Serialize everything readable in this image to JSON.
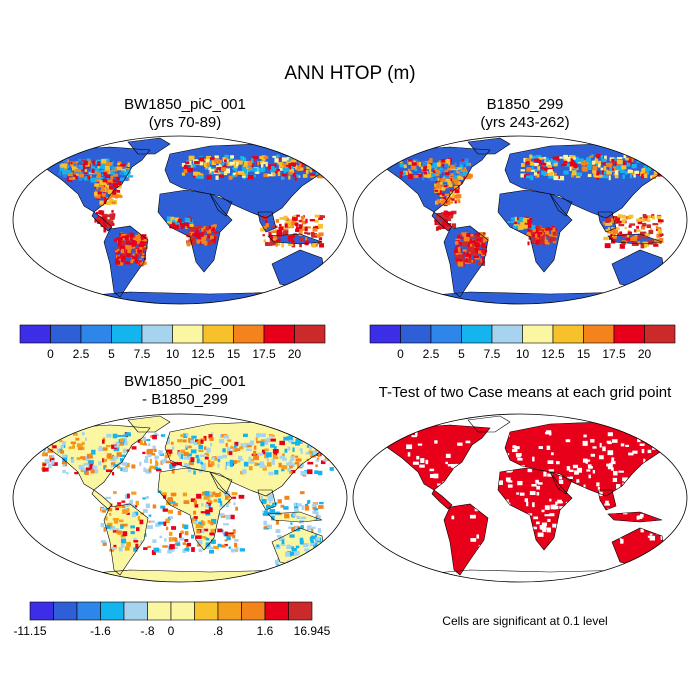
{
  "figure": {
    "title": "ANN HTOP (m)",
    "panels": [
      {
        "title_line1": "BW1850_piC_001",
        "title_line2": "(yrs 70-89)"
      },
      {
        "title_line1": "B1850_299",
        "title_line2": "(yrs 243-262)"
      },
      {
        "title_line1": "BW1850_piC_001",
        "title_line2": "- B1850_299"
      },
      {
        "title_line1": "T-Test of two Case means at each grid point"
      }
    ],
    "significance_note": "Cells are significant at 0.1 level"
  },
  "chart_data": [
    {
      "type": "heatmap",
      "title": "BW1850_piC_001 (yrs 70-89)",
      "variable": "HTOP",
      "units": "m",
      "colorbar": {
        "labels": [
          "0",
          "2.5",
          "5",
          "7.5",
          "10",
          "12.5",
          "15",
          "17.5",
          "20"
        ],
        "colors": [
          "#3b2ee6",
          "#2e5fd6",
          "#2f86ea",
          "#14b4ef",
          "#a6d3ee",
          "#fbf6a1",
          "#f6c12b",
          "#f5831c",
          "#e8001a",
          "#cc2a2a"
        ]
      }
    },
    {
      "type": "heatmap",
      "title": "B1850_299 (yrs 243-262)",
      "variable": "HTOP",
      "units": "m",
      "colorbar": {
        "labels": [
          "0",
          "2.5",
          "5",
          "7.5",
          "10",
          "12.5",
          "15",
          "17.5",
          "20"
        ],
        "colors": [
          "#3b2ee6",
          "#2e5fd6",
          "#2f86ea",
          "#14b4ef",
          "#a6d3ee",
          "#fbf6a1",
          "#f6c12b",
          "#f5831c",
          "#e8001a",
          "#cc2a2a"
        ]
      }
    },
    {
      "type": "heatmap",
      "title": "BW1850_piC_001 - B1850_299",
      "variable": "HTOP difference",
      "units": "m",
      "colorbar": {
        "labels": [
          "-11.15",
          "-1.6",
          "-.8",
          "0",
          ".8",
          "1.6",
          "16.945"
        ],
        "colors": [
          "#3b2ee6",
          "#2e5fd6",
          "#2f86ea",
          "#14b4ef",
          "#a6d3ee",
          "#fbf6a1",
          "#fbf6a1",
          "#f6c12b",
          "#f5a01c",
          "#f5831c",
          "#e8001a",
          "#cc2a2a"
        ]
      }
    },
    {
      "type": "heatmap",
      "title": "T-Test of two Case means at each grid point",
      "significance_level": 0.1,
      "significant_color": "#e8001a"
    }
  ]
}
